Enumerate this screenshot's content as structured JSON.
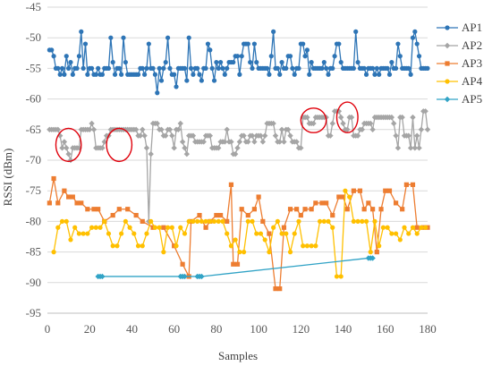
{
  "chart_data": {
    "type": "line",
    "xlabel": "Samples",
    "ylabel": "RSSI (dBm)",
    "xlim": [
      0,
      180
    ],
    "ylim": [
      -95,
      -45
    ],
    "x_ticks": [
      0,
      20,
      40,
      60,
      80,
      100,
      120,
      140,
      160,
      180
    ],
    "y_ticks": [
      -45,
      -50,
      -55,
      -60,
      -65,
      -70,
      -75,
      -80,
      -85,
      -90,
      -95
    ],
    "grid": "horizontal",
    "legend": "right",
    "series": [
      {
        "name": "AP1",
        "color": "#2e75b6",
        "marker": "circle",
        "x": [
          1,
          2,
          3,
          4,
          5,
          6,
          7,
          8,
          9,
          10,
          11,
          12,
          13,
          14,
          15,
          16,
          17,
          18,
          19,
          20,
          21,
          22,
          23,
          24,
          25,
          26,
          27,
          28,
          29,
          30,
          31,
          32,
          33,
          34,
          35,
          36,
          37,
          38,
          39,
          40,
          41,
          42,
          43,
          44,
          45,
          46,
          47,
          48,
          49,
          50,
          51,
          52,
          53,
          54,
          55,
          56,
          57,
          58,
          59,
          60,
          61,
          62,
          63,
          64,
          65,
          66,
          67,
          68,
          69,
          70,
          71,
          72,
          73,
          74,
          75,
          76,
          77,
          78,
          79,
          80,
          81,
          82,
          83,
          84,
          85,
          86,
          87,
          88,
          89,
          90,
          91,
          92,
          93,
          94,
          95,
          96,
          97,
          98,
          99,
          100,
          101,
          102,
          103,
          104,
          105,
          106,
          107,
          108,
          109,
          110,
          111,
          112,
          113,
          114,
          115,
          116,
          117,
          118,
          119,
          120,
          121,
          122,
          123,
          124,
          125,
          126,
          127,
          128,
          129,
          130,
          131,
          132,
          133,
          134,
          135,
          136,
          137,
          138,
          139,
          140,
          141,
          142,
          143,
          144,
          145,
          146,
          147,
          148,
          149,
          150,
          151,
          152,
          153,
          154,
          155,
          156,
          157,
          158,
          159,
          160,
          161,
          162,
          163,
          164,
          165,
          166,
          167,
          168,
          169,
          170,
          171,
          172,
          173,
          174,
          175,
          176,
          177,
          178,
          179,
          180
        ],
        "values": [
          -52,
          -52,
          -53,
          -55,
          -55,
          -56,
          -55,
          -56,
          -53,
          -55,
          -54,
          -56,
          -55,
          -55,
          -53,
          -49,
          -55,
          -51,
          -56,
          -55,
          -55,
          -56,
          -56,
          -55,
          -56,
          -56,
          -55,
          -55,
          -55,
          -50,
          -54,
          -56,
          -55,
          -55,
          -56,
          -50,
          -54,
          -56,
          -56,
          -56,
          -56,
          -56,
          -56,
          -55,
          -55,
          -56,
          -55,
          -51,
          -55,
          -55,
          -56,
          -59,
          -55,
          -57,
          -55,
          -54,
          -50,
          -55,
          -56,
          -56,
          -58,
          -55,
          -55,
          -55,
          -55,
          -57,
          -50,
          -55,
          -56,
          -55,
          -55,
          -56,
          -57,
          -55,
          -55,
          -51,
          -52,
          -55,
          -57,
          -54,
          -55,
          -54,
          -55,
          -56,
          -55,
          -54,
          -54,
          -54,
          -53,
          -53,
          -56,
          -53,
          -51,
          -51,
          -51,
          -54,
          -55,
          -51,
          -54,
          -55,
          -55,
          -55,
          -55,
          -55,
          -56,
          -53,
          -49,
          -55,
          -55,
          -56,
          -54,
          -55,
          -55,
          -53,
          -53,
          -55,
          -56,
          -55,
          -55,
          -51,
          -51,
          -53,
          -52,
          -56,
          -54,
          -55,
          -55,
          -55,
          -55,
          -55,
          -54,
          -55,
          -56,
          -55,
          -55,
          -53,
          -51,
          -51,
          -54,
          -55,
          -55,
          -55,
          -55,
          -55,
          -55,
          -49,
          -54,
          -55,
          -55,
          -55,
          -56,
          -55,
          -55,
          -55,
          -56,
          -55,
          -56,
          -55,
          -55,
          -55,
          -55,
          -56,
          -54,
          -55,
          -55,
          -51,
          -53,
          -55,
          -55,
          -55,
          -55,
          -56,
          -50,
          -49,
          -51,
          -53,
          -55,
          -55,
          -55,
          -55
        ]
      },
      {
        "name": "AP2",
        "color": "#a5a5a5",
        "marker": "diamond",
        "x": [
          1,
          2,
          3,
          4,
          5,
          6,
          7,
          8,
          9,
          10,
          11,
          12,
          13,
          14,
          15,
          16,
          17,
          18,
          19,
          20,
          21,
          22,
          23,
          24,
          25,
          26,
          27,
          28,
          29,
          30,
          31,
          32,
          33,
          34,
          35,
          36,
          37,
          38,
          39,
          40,
          41,
          42,
          43,
          44,
          45,
          46,
          47,
          48,
          49,
          50,
          51,
          52,
          53,
          54,
          55,
          56,
          57,
          58,
          59,
          60,
          61,
          62,
          63,
          64,
          65,
          66,
          67,
          68,
          69,
          70,
          71,
          72,
          73,
          74,
          75,
          76,
          77,
          78,
          79,
          80,
          81,
          82,
          83,
          84,
          85,
          86,
          87,
          88,
          89,
          90,
          91,
          92,
          93,
          94,
          95,
          96,
          97,
          98,
          99,
          100,
          101,
          102,
          103,
          104,
          105,
          106,
          107,
          108,
          109,
          110,
          111,
          112,
          113,
          114,
          115,
          116,
          117,
          118,
          119,
          120,
          121,
          122,
          123,
          124,
          125,
          126,
          127,
          128,
          129,
          130,
          131,
          132,
          133,
          134,
          135,
          136,
          137,
          138,
          139,
          140,
          141,
          142,
          143,
          144,
          145,
          146,
          147,
          148,
          149,
          150,
          151,
          152,
          153,
          154,
          155,
          156,
          157,
          158,
          159,
          160,
          161,
          162,
          163,
          164,
          165,
          166,
          167,
          168,
          169,
          170,
          171,
          172,
          173,
          174,
          175,
          176,
          177,
          178,
          179,
          180
        ],
        "values": [
          -65,
          -65,
          -65,
          -65,
          -65,
          -66,
          -68,
          -67,
          -68,
          -69,
          -70,
          -68,
          -68,
          -68,
          -68,
          -65,
          -65,
          -65,
          -65,
          -65,
          -64,
          -65,
          -68,
          -68,
          -68,
          -68,
          -67,
          -66,
          -66,
          -65,
          -65,
          -65,
          -65,
          -65,
          -65,
          -65,
          -65,
          -65,
          -65,
          -65,
          -65,
          -65,
          -66,
          -66,
          -65,
          -66,
          -68,
          -80,
          -69,
          -64,
          -64,
          -64,
          -65,
          -65,
          -66,
          -66,
          -65,
          -65,
          -66,
          -68,
          -65,
          -65,
          -64,
          -67,
          -68,
          -69,
          -66,
          -66,
          -66,
          -67,
          -67,
          -67,
          -67,
          -67,
          -66,
          -66,
          -66,
          -68,
          -68,
          -68,
          -68,
          -67,
          -67,
          -67,
          -65,
          -67,
          -67,
          -69,
          -69,
          -68,
          -67,
          -66,
          -66,
          -67,
          -67,
          -66,
          -66,
          -67,
          -66,
          -66,
          -66,
          -67,
          -66,
          -64,
          -64,
          -64,
          -64,
          -66,
          -67,
          -67,
          -65,
          -67,
          -65,
          -65,
          -66,
          -67,
          -67,
          -67,
          -68,
          -68,
          -63,
          -63,
          -63,
          -64,
          -64,
          -64,
          -63,
          -63,
          -63,
          -63,
          -63,
          -63,
          -66,
          -66,
          -64,
          -62,
          -62,
          -62,
          -63,
          -64,
          -65,
          -65,
          -63,
          -63,
          -66,
          -66,
          -66,
          -65,
          -65,
          -64,
          -64,
          -64,
          -64,
          -65,
          -63,
          -63,
          -63,
          -63,
          -63,
          -63,
          -63,
          -63,
          -63,
          -64,
          -66,
          -68,
          -63,
          -63,
          -66,
          -66,
          -66,
          -68,
          -63,
          -68,
          -66,
          -68,
          -65,
          -62,
          -62,
          -65
        ]
      },
      {
        "name": "AP3",
        "color": "#ed7d31",
        "marker": "square",
        "x": [
          1,
          3,
          5,
          8,
          10,
          12,
          14,
          16,
          19,
          22,
          24,
          27,
          31,
          34,
          38,
          42,
          45,
          50,
          55,
          60,
          64,
          67,
          68,
          72,
          75,
          77,
          80,
          82,
          85,
          87,
          88,
          90,
          92,
          95,
          98,
          100,
          102,
          105,
          108,
          110,
          112,
          115,
          118,
          120,
          122,
          125,
          127,
          130,
          132,
          135,
          138,
          140,
          142,
          145,
          148,
          150,
          152,
          154,
          156,
          158,
          160,
          162,
          165,
          168,
          170,
          173,
          175,
          178,
          180
        ],
        "values": [
          -77,
          -73,
          -77,
          -75,
          -76,
          -76,
          -77,
          -77,
          -78,
          -78,
          -78,
          -80,
          -79,
          -78,
          -78,
          -79,
          -80,
          -81,
          -81,
          -84,
          -87,
          -89,
          -80,
          -79,
          -81,
          -80,
          -79,
          -79,
          -80,
          -74,
          -87,
          -87,
          -78,
          -79,
          -78,
          -76,
          -80,
          -82,
          -91,
          -91,
          -81,
          -78,
          -78,
          -79,
          -78,
          -78,
          -77,
          -77,
          -77,
          -79,
          -76,
          -76,
          -78,
          -75,
          -75,
          -78,
          -77,
          -78,
          -85,
          -78,
          -75,
          -75,
          -77,
          -78,
          -74,
          -74,
          -81,
          -81,
          -81
        ]
      },
      {
        "name": "AP4",
        "color": "#ffc000",
        "marker": "circle",
        "x": [
          3,
          5,
          7,
          9,
          11,
          13,
          15,
          17,
          19,
          21,
          23,
          25,
          27,
          29,
          31,
          33,
          35,
          37,
          39,
          41,
          43,
          45,
          47,
          49,
          51,
          53,
          55,
          57,
          59,
          61,
          63,
          65,
          67,
          69,
          71,
          73,
          75,
          77,
          79,
          81,
          83,
          85,
          87,
          89,
          91,
          93,
          95,
          97,
          99,
          101,
          103,
          105,
          107,
          109,
          111,
          113,
          115,
          117,
          119,
          121,
          123,
          125,
          127,
          129,
          131,
          133,
          135,
          137,
          139,
          141,
          143,
          145,
          147,
          149,
          151,
          153,
          155,
          157,
          159,
          161,
          163,
          165,
          167,
          169,
          171,
          173,
          175,
          177,
          179
        ],
        "values": [
          -85,
          -81,
          -80,
          -80,
          -83,
          -81,
          -82,
          -82,
          -82,
          -81,
          -81,
          -81,
          -80,
          -82,
          -84,
          -84,
          -82,
          -80,
          -81,
          -82,
          -84,
          -84,
          -82,
          -80,
          -81,
          -81,
          -85,
          -81,
          -81,
          -84,
          -81,
          -82,
          -80,
          -80,
          -80,
          -80,
          -80,
          -80,
          -80,
          -80,
          -80,
          -82,
          -84,
          -83,
          -85,
          -85,
          -80,
          -80,
          -82,
          -82,
          -83,
          -85,
          -81,
          -80,
          -82,
          -82,
          -85,
          -82,
          -80,
          -84,
          -84,
          -84,
          -84,
          -80,
          -80,
          -80,
          -81,
          -89,
          -89,
          -75,
          -76,
          -80,
          -80,
          -80,
          -80,
          -85,
          -80,
          -84,
          -81,
          -81,
          -82,
          -82,
          -83,
          -81,
          -82,
          -81,
          -82,
          -81,
          -81
        ]
      },
      {
        "name": "AP5",
        "color": "#31a3c6",
        "marker": "diamond",
        "x": [
          24,
          25,
          26,
          63,
          64,
          65,
          71,
          72,
          73,
          152,
          153,
          154
        ],
        "values": [
          -89,
          -89,
          -89,
          -89,
          -89,
          -89,
          -89,
          -89,
          -89,
          -86,
          -86,
          -86
        ]
      }
    ],
    "annotations": {
      "highlight_color": "#e0000b",
      "ellipses": [
        {
          "x": 10,
          "y": -67.5,
          "rx": 6,
          "ry": 2.7
        },
        {
          "x": 34,
          "y": -67.5,
          "rx": 6,
          "ry": 2.7
        },
        {
          "x": 126,
          "y": -63.5,
          "rx": 6,
          "ry": 2.0
        },
        {
          "x": 142,
          "y": -63,
          "rx": 5,
          "ry": 2.5
        }
      ]
    }
  }
}
